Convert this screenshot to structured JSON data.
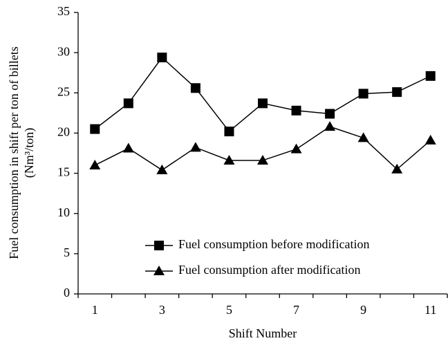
{
  "chart_data": {
    "type": "line",
    "xlabel": "Shift Number",
    "ylabel": [
      "Fuel consumption in shift per ton of billets",
      "(Nm³/ton)"
    ],
    "categories": [
      "1",
      null,
      "3",
      null,
      "5",
      null,
      "7",
      null,
      "9",
      null,
      "11"
    ],
    "series": [
      {
        "name": "Fuel consumption before modification",
        "color": "#000000",
        "marker": "square",
        "values": [
          20.5,
          23.7,
          29.4,
          25.6,
          20.2,
          23.7,
          22.8,
          22.4,
          24.9,
          25.1,
          27.1
        ]
      },
      {
        "name": "Fuel consumption after modification",
        "color": "#000000",
        "marker": "triangle",
        "values": [
          16.0,
          18.1,
          15.4,
          18.2,
          16.6,
          16.6,
          18.0,
          20.8,
          19.4,
          15.5,
          19.1
        ]
      }
    ],
    "ylim": [
      0,
      35
    ],
    "yticks": [
      0,
      5,
      10,
      15,
      20,
      25,
      30,
      35
    ],
    "grid": false
  }
}
